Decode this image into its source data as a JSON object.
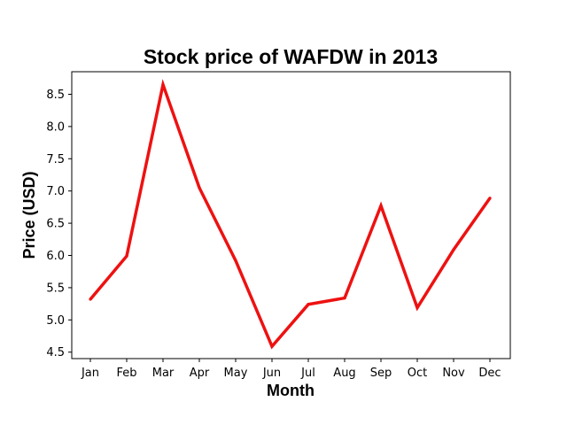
{
  "chart_data": {
    "type": "line",
    "title": "Stock price of WAFDW in 2013",
    "xlabel": "Month",
    "ylabel": "Price (USD)",
    "categories": [
      "Jan",
      "Feb",
      "Mar",
      "Apr",
      "May",
      "Jun",
      "Jul",
      "Aug",
      "Sep",
      "Oct",
      "Nov",
      "Dec"
    ],
    "series": [
      {
        "values": [
          5.32,
          5.99,
          8.65,
          7.05,
          5.92,
          4.59,
          5.24,
          5.34,
          6.77,
          5.19,
          6.09,
          6.89
        ],
        "color": "#ee1111"
      }
    ],
    "yticks": [
      "4.5",
      "5.0",
      "5.5",
      "6.0",
      "6.5",
      "7.0",
      "7.5",
      "8.0",
      "8.5"
    ],
    "ylim": [
      4.4,
      8.85
    ],
    "grid": false,
    "legend": "none"
  }
}
